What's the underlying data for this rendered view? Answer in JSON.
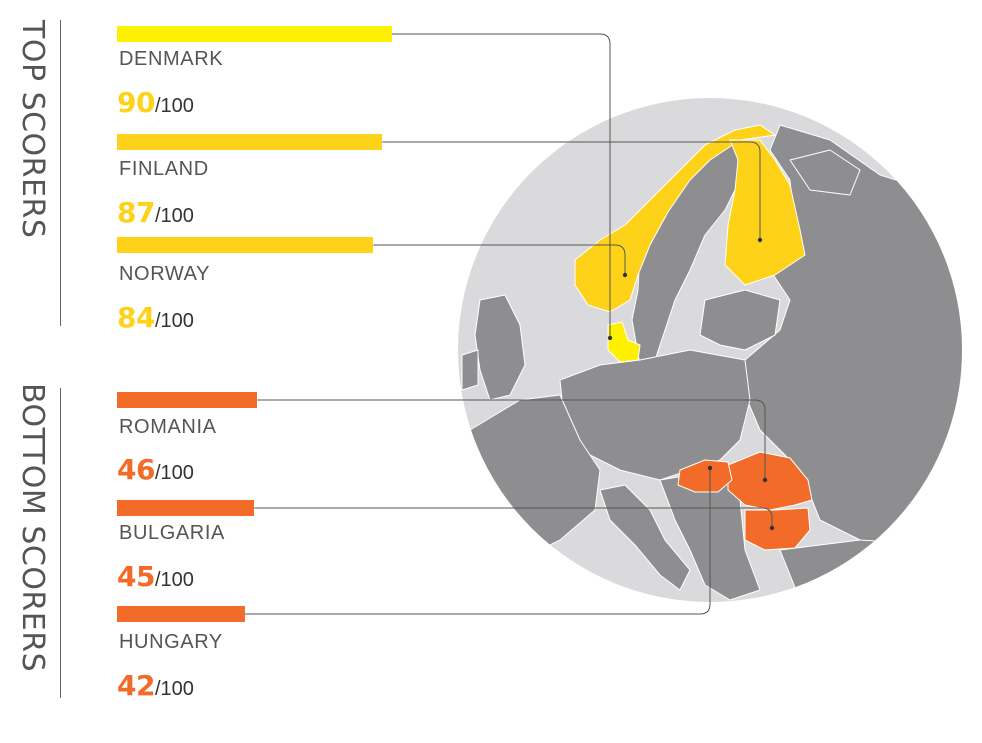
{
  "chart_data": {
    "type": "bar",
    "orientation": "horizontal",
    "value_max": 100,
    "max_label": "/100",
    "colors": {
      "top": "#FFD21A",
      "top_first": "#FFF000",
      "bottom": "#F26B29",
      "map_land": "#8E8E90",
      "map_globe": "#DADADC"
    },
    "groups": [
      {
        "label": "TOP SCORERS",
        "items": [
          {
            "country": "DENMARK",
            "value": 90
          },
          {
            "country": "FINLAND",
            "value": 87
          },
          {
            "country": "NORWAY",
            "value": 84
          }
        ]
      },
      {
        "label": "BOTTOM SCORERS",
        "items": [
          {
            "country": "ROMANIA",
            "value": 46
          },
          {
            "country": "BULGARIA",
            "value": 45
          },
          {
            "country": "HUNGARY",
            "value": 42
          }
        ]
      }
    ]
  }
}
